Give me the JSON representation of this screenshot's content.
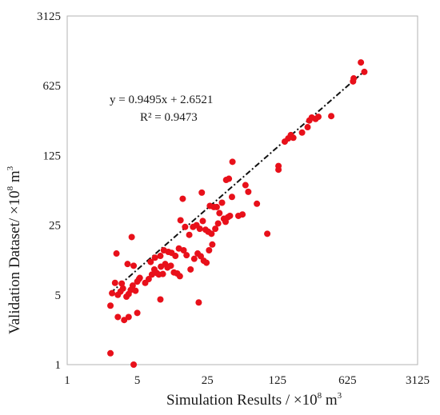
{
  "chart_data": {
    "type": "scatter",
    "xlabel": "Simulation Results / ×10",
    "xlabel_sup": "8",
    "xlabel_unit": " m",
    "xlabel_unit_sup": "3",
    "ylabel": "Validation Dataset/ ×10",
    "ylabel_sup": "8",
    "ylabel_unit": " m",
    "ylabel_unit_sup": "3",
    "scale": "log5",
    "xlim": [
      1,
      3125
    ],
    "ylim": [
      1,
      3125
    ],
    "xticks": [
      "1",
      "5",
      "25",
      "125",
      "625",
      "3125"
    ],
    "yticks": [
      "1",
      "5",
      "25",
      "125",
      "625",
      "3125"
    ],
    "grid": false,
    "point_color": "#e8101a",
    "trendline": {
      "equation": "y = 0.9495x + 2.6521",
      "r_squared": "R² = 0.9473",
      "slope": 0.9495,
      "intercept": 2.6521,
      "x_range": [
        2.7,
        900
      ],
      "color": "#111111"
    },
    "points": [
      [
        2.7,
        1.3
      ],
      [
        4.6,
        1.0
      ],
      [
        2.7,
        3.9
      ],
      [
        3.2,
        3.0
      ],
      [
        3.7,
        2.8
      ],
      [
        4.1,
        3.0
      ],
      [
        5.0,
        3.3
      ],
      [
        2.8,
        5.2
      ],
      [
        3.0,
        6.6
      ],
      [
        3.2,
        5.0
      ],
      [
        3.4,
        5.4
      ],
      [
        3.6,
        5.8
      ],
      [
        3.9,
        4.8
      ],
      [
        4.1,
        5.1
      ],
      [
        4.3,
        5.6
      ],
      [
        4.5,
        6.2
      ],
      [
        4.8,
        5.5
      ],
      [
        5.0,
        6.8
      ],
      [
        5.3,
        7.4
      ],
      [
        3.1,
        13.0
      ],
      [
        4.4,
        19.0
      ],
      [
        3.5,
        6.5
      ],
      [
        4.0,
        10.2
      ],
      [
        4.6,
        9.8
      ],
      [
        5.2,
        7.2
      ],
      [
        6.0,
        6.6
      ],
      [
        6.5,
        7.2
      ],
      [
        7.0,
        8.0
      ],
      [
        7.4,
        9.0
      ],
      [
        7.8,
        8.3
      ],
      [
        8.2,
        8.0
      ],
      [
        8.6,
        9.6
      ],
      [
        9.0,
        8.1
      ],
      [
        9.5,
        10.2
      ],
      [
        10.0,
        9.4
      ],
      [
        10.8,
        9.8
      ],
      [
        11.6,
        8.4
      ],
      [
        12.5,
        8.2
      ],
      [
        13.3,
        7.7
      ],
      [
        6.8,
        10.7
      ],
      [
        7.5,
        11.8
      ],
      [
        8.5,
        12.3
      ],
      [
        9.2,
        14.0
      ],
      [
        10.2,
        13.5
      ],
      [
        11.0,
        13.2
      ],
      [
        12.0,
        12.3
      ],
      [
        13.0,
        14.6
      ],
      [
        14.5,
        14.0
      ],
      [
        15.5,
        12.5
      ],
      [
        17.0,
        9.0
      ],
      [
        18.5,
        11.5
      ],
      [
        20.0,
        13.0
      ],
      [
        21.5,
        12.2
      ],
      [
        23.0,
        11.0
      ],
      [
        24.5,
        10.5
      ],
      [
        26.0,
        14.0
      ],
      [
        28.0,
        16.0
      ],
      [
        13.5,
        28.0
      ],
      [
        15.0,
        24.0
      ],
      [
        16.5,
        20.0
      ],
      [
        18.0,
        24.0
      ],
      [
        19.5,
        25.0
      ],
      [
        21.0,
        23.0
      ],
      [
        22.5,
        27.5
      ],
      [
        24.0,
        22.5
      ],
      [
        25.5,
        21.5
      ],
      [
        27.5,
        20.5
      ],
      [
        30.0,
        23.0
      ],
      [
        32.0,
        26.0
      ],
      [
        14.2,
        46.0
      ],
      [
        22.0,
        53.0
      ],
      [
        26.5,
        39.0
      ],
      [
        29.0,
        38.0
      ],
      [
        31.0,
        38.0
      ],
      [
        33.0,
        33.0
      ],
      [
        35.0,
        42.0
      ],
      [
        36.5,
        29.0
      ],
      [
        38.0,
        27.0
      ],
      [
        40.0,
        30.0
      ],
      [
        42.0,
        31.0
      ],
      [
        44.0,
        48.0
      ],
      [
        38.5,
        71.0
      ],
      [
        41.0,
        73.0
      ],
      [
        44.5,
        108.0
      ],
      [
        51.0,
        31.0
      ],
      [
        56.0,
        32.0
      ],
      [
        60.0,
        63.0
      ],
      [
        64.0,
        54.0
      ],
      [
        78.0,
        41.0
      ],
      [
        20.5,
        4.2
      ],
      [
        8.5,
        4.5
      ],
      [
        99.0,
        20.5
      ],
      [
        128.0,
        90.0
      ],
      [
        128.0,
        98.0
      ],
      [
        148.0,
        172.0
      ],
      [
        160.0,
        185.0
      ],
      [
        170.0,
        200.0
      ],
      [
        180.0,
        188.0
      ],
      [
        220.0,
        212.0
      ],
      [
        250.0,
        240.0
      ],
      [
        260.0,
        280.0
      ],
      [
        275.0,
        300.0
      ],
      [
        300.0,
        290.0
      ],
      [
        320.0,
        305.0
      ],
      [
        430.0,
        310.0
      ],
      [
        710.0,
        690.0
      ],
      [
        720.0,
        740.0
      ],
      [
        850.0,
        1070.0
      ],
      [
        920.0,
        860.0
      ]
    ]
  }
}
